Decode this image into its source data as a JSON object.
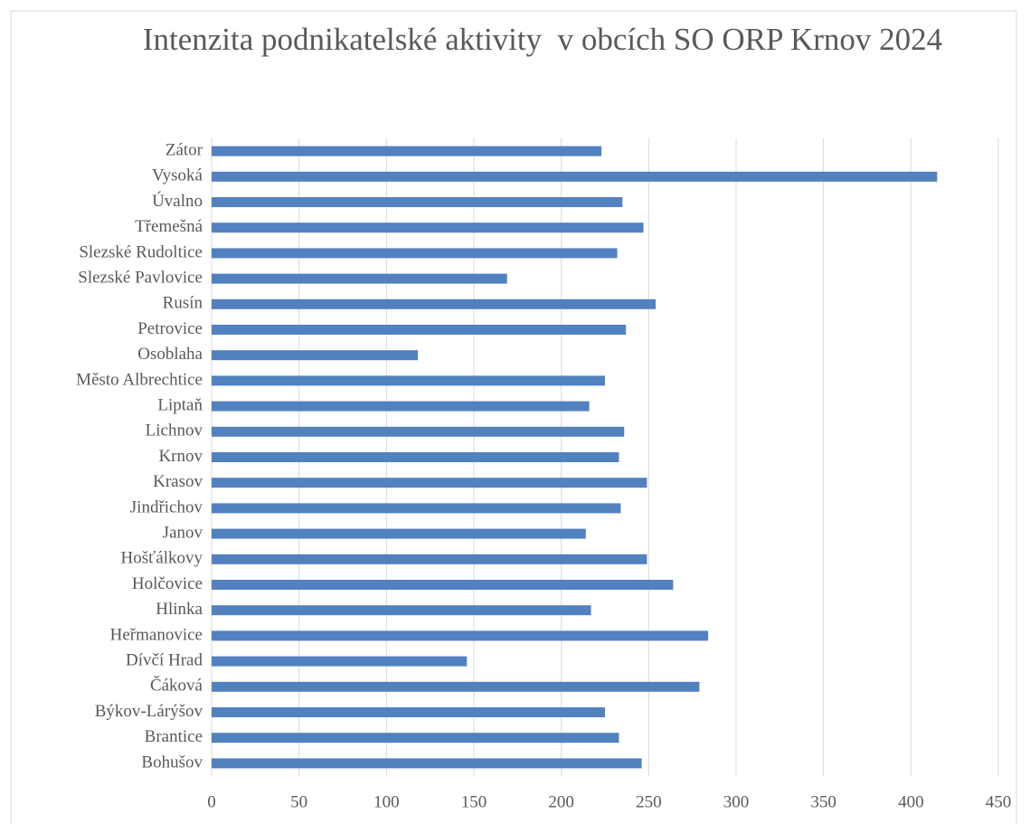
{
  "chart_data": {
    "type": "bar",
    "orientation": "horizontal",
    "title": "Intenzita podnikatelské aktivity  v obcích SO ORP Krnov 2024",
    "categories": [
      "Zátor",
      "Vysoká",
      "Úvalno",
      "Třemešná",
      "Slezské Rudoltice",
      "Slezské Pavlovice",
      "Rusín",
      "Petrovice",
      "Osoblaha",
      "Město Albrechtice",
      "Liptaň",
      "Lichnov",
      "Krnov",
      "Krasov",
      "Jindřichov",
      "Janov",
      "Hošťálkovy",
      "Holčovice",
      "Hlinka",
      "Heřmanovice",
      "Dívčí Hrad",
      "Čáková",
      "Býkov-Lárýšov",
      "Brantice",
      "Bohušov"
    ],
    "values": [
      223,
      415,
      235,
      247,
      232,
      169,
      254,
      237,
      118,
      225,
      216,
      236,
      233,
      249,
      234,
      214,
      249,
      264,
      217,
      284,
      146,
      279,
      225,
      233,
      246
    ],
    "color": "#5281c0",
    "xlim": [
      0,
      450
    ],
    "xticks": [
      0,
      50,
      100,
      150,
      200,
      250,
      300,
      350,
      400,
      450
    ],
    "grid": true
  }
}
